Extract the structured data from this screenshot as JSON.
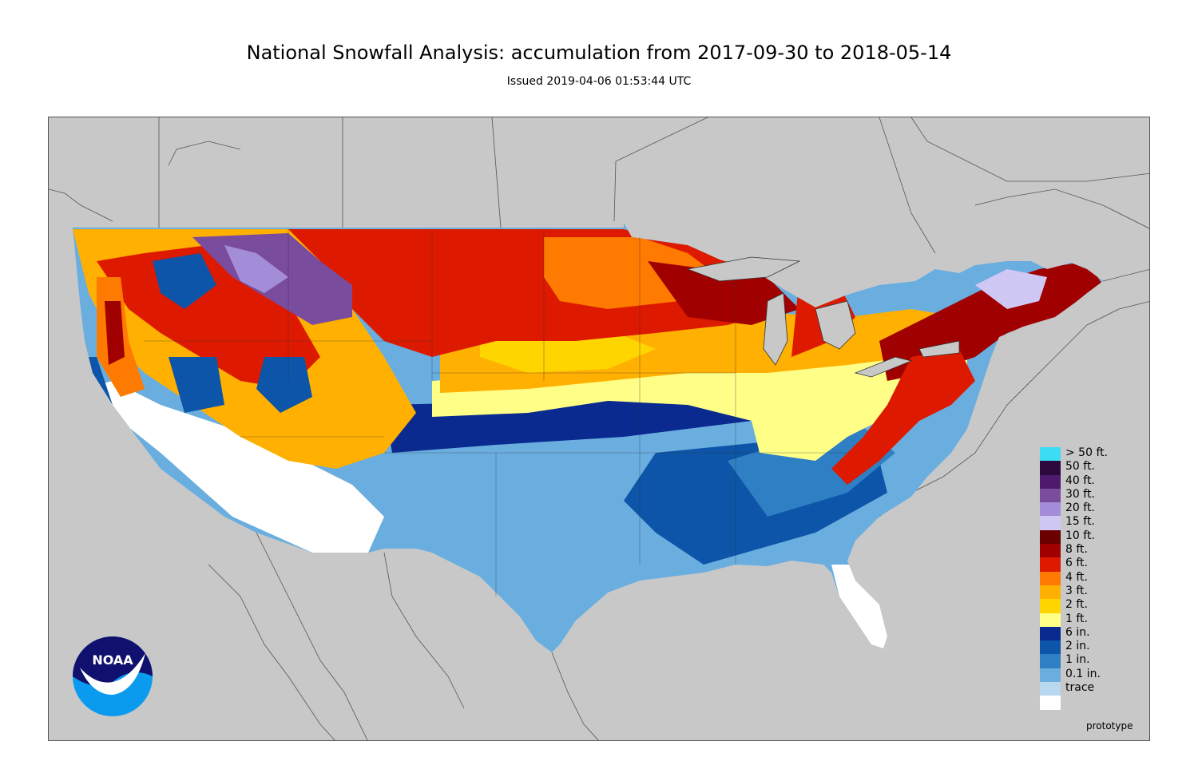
{
  "title": "National Snowfall Analysis: accumulation from 2017-09-30 to 2018-05-14",
  "subtitle": "Issued 2019-04-06 01:53:44 UTC",
  "watermark": "prototype",
  "logo": {
    "text": "NOAA",
    "colors": {
      "top": "#10106e",
      "bottom": "#0a9bef",
      "wave": "#ffffff"
    }
  },
  "background_color": "#c8c8c8",
  "legend": [
    {
      "label": "> 50 ft.",
      "color": "#3ddcf5"
    },
    {
      "label": "50 ft.",
      "color": "#2c0a3e"
    },
    {
      "label": "40 ft.",
      "color": "#4e1a6e"
    },
    {
      "label": "30 ft.",
      "color": "#7a4c9e"
    },
    {
      "label": "20 ft.",
      "color": "#a48dd8"
    },
    {
      "label": "15 ft.",
      "color": "#cfc8f5"
    },
    {
      "label": "10 ft.",
      "color": "#6a0000"
    },
    {
      "label": "8 ft.",
      "color": "#a00000"
    },
    {
      "label": "6 ft.",
      "color": "#dd1a00"
    },
    {
      "label": "4 ft.",
      "color": "#ff7a00"
    },
    {
      "label": "3 ft.",
      "color": "#ffb000"
    },
    {
      "label": "2 ft.",
      "color": "#ffd500"
    },
    {
      "label": "1 ft.",
      "color": "#ffff88"
    },
    {
      "label": "6 in.",
      "color": "#0a2a90"
    },
    {
      "label": "2 in.",
      "color": "#0c55a8"
    },
    {
      "label": "1 in.",
      "color": "#2f7fc4"
    },
    {
      "label": "0.1 in.",
      "color": "#6aaee0"
    },
    {
      "label": "trace",
      "color": "#b8d8f0"
    },
    {
      "label": "",
      "color": "#ffffff"
    }
  ]
}
